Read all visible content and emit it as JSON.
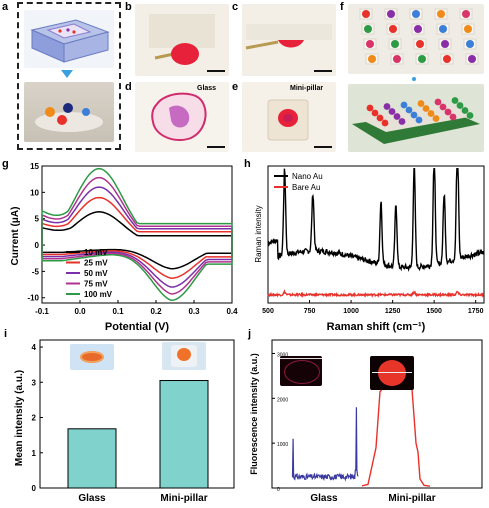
{
  "panels": {
    "a": "a",
    "b": "b",
    "c": "c",
    "d": "d",
    "e": "e",
    "f": "f",
    "g": "g",
    "h": "h",
    "i": "i",
    "j": "j"
  },
  "photo_captions": {
    "d": "Glass",
    "e": "Mini-pillar"
  },
  "colors": {
    "cv": [
      "#000000",
      "#e8312a",
      "#7b2fa8",
      "#b0338f",
      "#2e9a45"
    ],
    "raman_nano": "#000000",
    "raman_bare": "#e8312a",
    "bar": "#7fd3cc",
    "fluor_glass": "#3a3aa0",
    "fluor_pillar": "#e8312a"
  },
  "chart_data": [
    {
      "type": "line",
      "panel": "g",
      "xlabel": "Potential (V)",
      "ylabel": "Current (μA)",
      "xlim": [
        -0.1,
        0.4
      ],
      "ylim": [
        -11,
        15
      ],
      "xticks": [
        "-0.1",
        "0.0",
        "0.1",
        "0.2",
        "0.3",
        "0.4"
      ],
      "yticks": [
        "15",
        "10",
        "5",
        "0",
        "-5",
        "-10"
      ],
      "series": [
        {
          "name": "10 mV",
          "ip": 6.3,
          "in": -4.5
        },
        {
          "name": "25 mV",
          "ip": 9.0,
          "in": -6.3
        },
        {
          "name": "50 mV",
          "ip": 11.0,
          "in": -8.0
        },
        {
          "name": "75 mV",
          "ip": 12.8,
          "in": -9.3
        },
        {
          "name": "100 mV",
          "ip": 14.5,
          "in": -10.5
        }
      ],
      "legend": "bottom-center"
    },
    {
      "type": "line",
      "panel": "h",
      "xlabel": "Raman shift (cm⁻¹)",
      "ylabel": "Raman intensity",
      "xlim": [
        500,
        1800
      ],
      "xticks": [
        "500",
        "750",
        "1000",
        "1250",
        "1500",
        "1750"
      ],
      "series": [
        {
          "name": "Nano Au",
          "baseline": 0.32,
          "peaks": [
            [
              600,
              0.62
            ],
            [
              770,
              0.42
            ],
            [
              1180,
              0.46
            ],
            [
              1270,
              0.45
            ],
            [
              1380,
              0.75
            ],
            [
              1500,
              0.8
            ],
            [
              1560,
              0.5
            ],
            [
              1640,
              0.88
            ]
          ]
        },
        {
          "name": "Bare Au",
          "baseline": 0.06,
          "peaks": [
            [
              600,
              0.02
            ],
            [
              1380,
              0.02
            ],
            [
              1640,
              0.02
            ]
          ]
        }
      ],
      "legend": "top-left"
    },
    {
      "type": "bar",
      "panel": "i",
      "categories": [
        "Glass",
        "Mini-pillar"
      ],
      "values": [
        1.68,
        3.05
      ],
      "ylabel": "Mean intensity (a.u.)",
      "ylim": [
        0,
        4.2
      ],
      "yticks": [
        "0",
        "1",
        "2",
        "3",
        "4"
      ]
    },
    {
      "type": "line",
      "panel": "j",
      "categories": [
        "Glass",
        "Mini-pillar"
      ],
      "ylabel": "Fluorescence intensity (a.u.)",
      "ylim": [
        0,
        3300
      ],
      "yticks": [
        "0",
        "1000",
        "2000",
        "3000"
      ],
      "series": [
        {
          "name": "Glass",
          "level": 250,
          "edge_left": 1100,
          "edge_right": 1800
        },
        {
          "name": "Mini-pillar",
          "level": 2250
        }
      ]
    }
  ]
}
